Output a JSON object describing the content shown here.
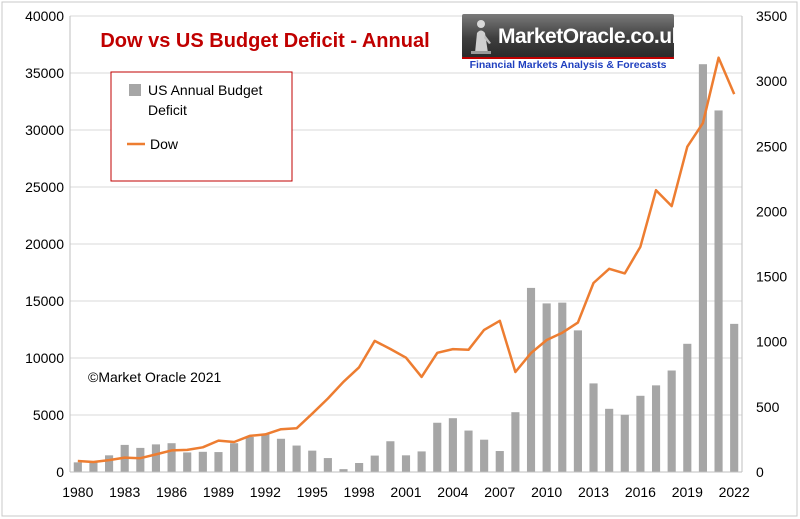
{
  "chart_data": {
    "type": "bar+line",
    "title": "Dow vs US Budget Deficit - Annual",
    "watermark": "©Market Oracle 2021",
    "legend": {
      "placement": "top-left",
      "entries": [
        {
          "label": "US Annual Budget Deficit",
          "kind": "bar",
          "color": "#a6a6a6"
        },
        {
          "label": "Dow",
          "kind": "line",
          "color": "#ed7d31"
        }
      ]
    },
    "x_tick_labels": [
      "1980",
      "1983",
      "1986",
      "1989",
      "1992",
      "1995",
      "1998",
      "2001",
      "2004",
      "2007",
      "2010",
      "2013",
      "2016",
      "2019",
      "2022"
    ],
    "years": [
      1980,
      1981,
      1982,
      1983,
      1984,
      1985,
      1986,
      1987,
      1988,
      1989,
      1990,
      1991,
      1992,
      1993,
      1994,
      1995,
      1996,
      1997,
      1998,
      1999,
      2000,
      2001,
      2002,
      2003,
      2004,
      2005,
      2006,
      2007,
      2008,
      2009,
      2010,
      2011,
      2012,
      2013,
      2014,
      2015,
      2016,
      2017,
      2018,
      2019,
      2020,
      2021,
      2022
    ],
    "left_axis": {
      "min": 0,
      "max": 40000,
      "ticks": [
        0,
        5000,
        10000,
        15000,
        20000,
        25000,
        30000,
        35000,
        40000
      ]
    },
    "right_axis": {
      "min": 0,
      "max": 3500,
      "ticks": [
        0,
        500,
        1000,
        1500,
        2000,
        2500,
        3000,
        3500
      ]
    },
    "series": [
      {
        "name": "Dow",
        "axis": "left",
        "type": "line",
        "values": [
          964,
          875,
          1047,
          1259,
          1212,
          1547,
          1896,
          1939,
          2169,
          2753,
          2634,
          3169,
          3301,
          3754,
          3834,
          5117,
          6448,
          7908,
          9181,
          11497,
          10787,
          10022,
          8342,
          10454,
          10783,
          10718,
          12463,
          13265,
          8776,
          10428,
          11578,
          12218,
          13104,
          16577,
          17823,
          17425,
          19763,
          24719,
          23327,
          28538,
          30606,
          36338,
          33147
        ]
      },
      {
        "name": "US Annual Budget Deficit",
        "axis": "right",
        "type": "bar",
        "values": [
          74,
          79,
          128,
          208,
          185,
          212,
          221,
          150,
          155,
          153,
          221,
          269,
          290,
          255,
          203,
          164,
          107,
          22,
          69,
          126,
          236,
          128,
          158,
          378,
          413,
          318,
          248,
          161,
          459,
          1413,
          1294,
          1300,
          1087,
          680,
          485,
          439,
          585,
          665,
          779,
          984,
          3130,
          2775,
          1137
        ]
      }
    ]
  }
}
